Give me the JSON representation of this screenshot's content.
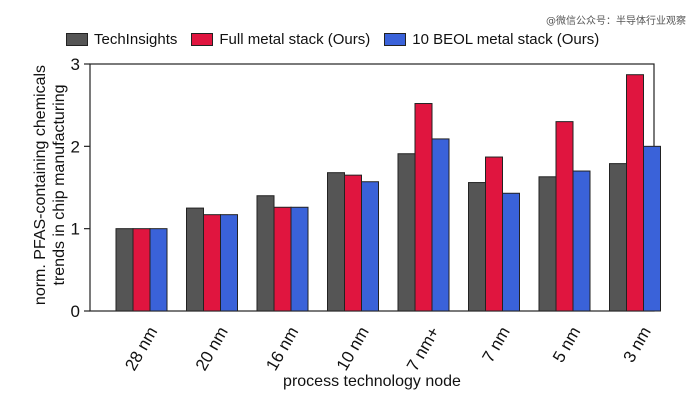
{
  "watermark": "@微信公众号：半导体行业观察",
  "chart_data": {
    "type": "bar",
    "title": "",
    "xlabel": "process technology node",
    "ylabel": [
      "norm. PFAS-containing chemicals",
      "trends in chip manufacturing"
    ],
    "ylim": [
      0,
      3
    ],
    "yticks": [
      0,
      1,
      2,
      3
    ],
    "legend_position": "top",
    "categories": [
      "28 nm",
      "20 nm",
      "16 nm",
      "10 nm",
      "7 nm+",
      "7 nm",
      "5 nm",
      "3 nm"
    ],
    "series": [
      {
        "name": "TechInsights",
        "color": "#555555",
        "values": [
          1.0,
          1.25,
          1.4,
          1.68,
          1.91,
          1.56,
          1.63,
          1.79
        ]
      },
      {
        "name": "Full metal stack (Ours)",
        "color": "#e0153f",
        "values": [
          1.0,
          1.17,
          1.26,
          1.65,
          2.52,
          1.87,
          2.3,
          2.87
        ]
      },
      {
        "name": "10 BEOL metal stack (Ours)",
        "color": "#3a62d9",
        "values": [
          1.0,
          1.17,
          1.26,
          1.57,
          2.09,
          1.43,
          1.7,
          2.0
        ]
      }
    ]
  }
}
